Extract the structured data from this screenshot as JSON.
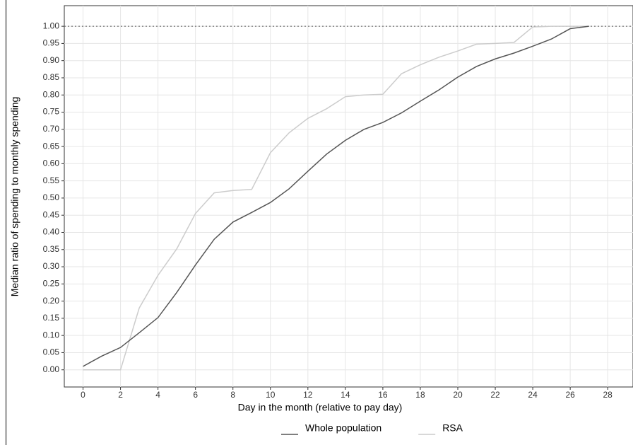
{
  "chart_data": {
    "type": "line",
    "x_label": "Day in the month (relative to pay day)",
    "y_label": "Median ratio of spending to monthly spending",
    "x": [
      0,
      1,
      2,
      3,
      4,
      5,
      6,
      7,
      8,
      9,
      10,
      11,
      12,
      13,
      14,
      15,
      16,
      17,
      18,
      19,
      20,
      21,
      22,
      23,
      24,
      25,
      26,
      27
    ],
    "series": [
      {
        "name": "Whole population",
        "color": "#555555",
        "values": [
          0.01,
          0.04,
          0.065,
          0.108,
          0.152,
          0.225,
          0.305,
          0.38,
          0.43,
          0.458,
          0.487,
          0.527,
          0.578,
          0.628,
          0.668,
          0.7,
          0.72,
          0.748,
          0.782,
          0.815,
          0.852,
          0.883,
          0.905,
          0.922,
          0.942,
          0.963,
          0.993,
          1.0
        ]
      },
      {
        "name": "RSA",
        "color": "#cccccc",
        "values": [
          0,
          0,
          0,
          0.18,
          0.275,
          0.352,
          0.455,
          0.515,
          0.522,
          0.525,
          0.632,
          0.69,
          0.732,
          0.76,
          0.795,
          0.8,
          0.802,
          0.862,
          0.888,
          0.91,
          0.928,
          0.948,
          0.95,
          0.953,
          0.998,
          1.0,
          1.0,
          1.0
        ]
      }
    ],
    "hline": 1,
    "xlim": [
      -1,
      29.35
    ],
    "ylim": [
      -0.05,
      1.06
    ],
    "xticks": [
      0,
      2,
      4,
      6,
      8,
      10,
      12,
      14,
      16,
      18,
      20,
      22,
      24,
      26,
      28
    ],
    "yticks": [
      {
        "value": 0,
        "label": "0.00"
      },
      {
        "value": 0.05,
        "label": "0.05"
      },
      {
        "value": 0.1,
        "label": "0.10"
      },
      {
        "value": 0.15,
        "label": "0.15"
      },
      {
        "value": 0.2,
        "label": "0.20"
      },
      {
        "value": 0.25,
        "label": "0.25"
      },
      {
        "value": 0.3,
        "label": "0.30"
      },
      {
        "value": 0.35,
        "label": "0.35"
      },
      {
        "value": 0.4,
        "label": "0.40"
      },
      {
        "value": 0.45,
        "label": "0.45"
      },
      {
        "value": 0.5,
        "label": "0.50"
      },
      {
        "value": 0.55,
        "label": "0.55"
      },
      {
        "value": 0.6,
        "label": "0.60"
      },
      {
        "value": 0.65,
        "label": "0.65"
      },
      {
        "value": 0.7,
        "label": "0.70"
      },
      {
        "value": 0.75,
        "label": "0.75"
      },
      {
        "value": 0.8,
        "label": "0.80"
      },
      {
        "value": 0.85,
        "label": "0.85"
      },
      {
        "value": 0.9,
        "label": "0.90"
      },
      {
        "value": 0.95,
        "label": "0.95"
      },
      {
        "value": 1,
        "label": "1.00"
      }
    ],
    "grid": true,
    "legend": "bottom"
  }
}
